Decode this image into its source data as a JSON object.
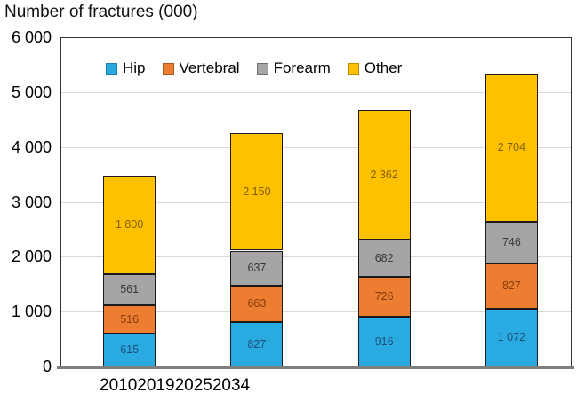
{
  "title": "Number of fractures (000)",
  "chart_data": {
    "type": "bar",
    "subtype": "stacked-vertical",
    "title": "Number of fractures (000)",
    "categories": [
      "2010",
      "2019",
      "2025",
      "2034"
    ],
    "series": [
      {
        "name": "Hip",
        "color": "#29ABE2",
        "swatch_border": "#1C7FAE",
        "label_color": "#1F4E79",
        "values": [
          615,
          827,
          916,
          1072
        ],
        "labels": [
          "615",
          "827",
          "916",
          "1 072"
        ]
      },
      {
        "name": "Vertebral",
        "color": "#ED7D31",
        "swatch_border": "#AE5A21",
        "label_color": "#843C0C",
        "values": [
          516,
          663,
          726,
          827
        ],
        "labels": [
          "516",
          "663",
          "726",
          "827"
        ]
      },
      {
        "name": "Forearm",
        "color": "#A5A5A5",
        "swatch_border": "#757070",
        "label_color": "#3B3838",
        "values": [
          561,
          637,
          682,
          746
        ],
        "labels": [
          "561",
          "637",
          "682",
          "746"
        ]
      },
      {
        "name": "Other",
        "color": "#FFC000",
        "swatch_border": "#BC8C00",
        "label_color": "#7F6000",
        "values": [
          1800,
          2150,
          2362,
          2704
        ],
        "labels": [
          "1 800",
          "2 150",
          "2 362",
          "2 704"
        ]
      }
    ],
    "y_ticks": [
      "0",
      "1 000",
      "2 000",
      "3 000",
      "4 000",
      "5 000",
      "6 000"
    ],
    "y_tick_values": [
      0,
      1000,
      2000,
      3000,
      4000,
      5000,
      6000
    ],
    "ylim": [
      0,
      6000
    ],
    "grid": true,
    "gridline_color": "#D9D9D9",
    "legend_position": "top-inside",
    "axis_line_color": "#7F7F7F",
    "plot_border_color": "#333333"
  }
}
